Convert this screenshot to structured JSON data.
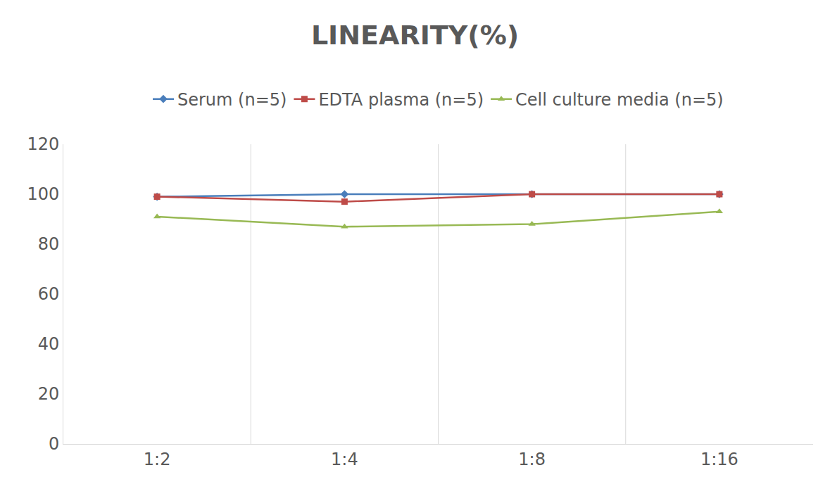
{
  "chart_data": {
    "type": "line",
    "title": "LINEARITY(%)",
    "categories": [
      "1:2",
      "1:4",
      "1:8",
      "1:16"
    ],
    "series": [
      {
        "name": "Serum (n=5)",
        "color": "#4a7ebb",
        "marker": "diamond",
        "values": [
          99,
          100,
          100,
          100
        ]
      },
      {
        "name": "EDTA plasma (n=5)",
        "color": "#be4b48",
        "marker": "square",
        "values": [
          99,
          97,
          100,
          100
        ]
      },
      {
        "name": "Cell culture media (n=5)",
        "color": "#98b954",
        "marker": "triangle-up",
        "values": [
          91,
          87,
          88,
          93
        ]
      }
    ],
    "ylim": [
      0,
      120
    ],
    "yticks": [
      0,
      20,
      40,
      60,
      80,
      100,
      120
    ],
    "grid": true,
    "legend": "top"
  }
}
